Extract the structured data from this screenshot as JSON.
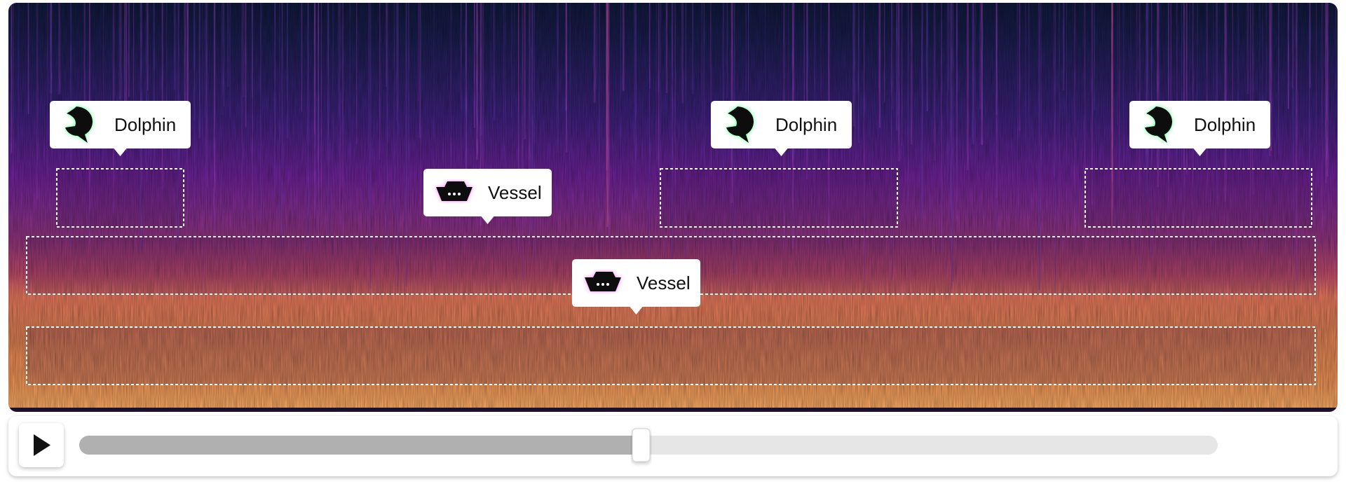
{
  "annotations": [
    {
      "label": "Dolphin"
    },
    {
      "label": "Dolphin"
    },
    {
      "label": "Dolphin"
    },
    {
      "label": "Vessel"
    },
    {
      "label": "Vessel"
    }
  ]
}
